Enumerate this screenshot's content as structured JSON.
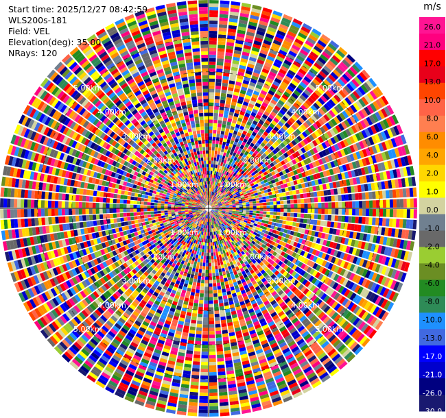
{
  "header": {
    "start_time": "Start time: 2025/12/27 08:42:59",
    "site": "WLS200s-181",
    "field": "Field: VEL",
    "elevation": "Elevation(deg): 35.00",
    "nrays": "NRays: 120"
  },
  "chart_data": {
    "type": "polar-ppi",
    "field": "VEL",
    "unit": "m/s",
    "nrays": 120,
    "elevation_deg": 35.0,
    "range_rings": [
      {
        "label": "1.00km",
        "km": 1
      },
      {
        "label": "2.00km",
        "km": 2
      },
      {
        "label": "3.00km",
        "km": 3
      },
      {
        "label": "4.00km",
        "km": 4
      },
      {
        "label": "5.00km",
        "km": 5
      }
    ],
    "max_range_km": 6.1,
    "colorbar": {
      "label": "m/s",
      "ticks": [
        "26.0",
        "21.0",
        "17.0",
        "13.0",
        "10.0",
        "8.0",
        "6.0",
        "4.0",
        "2.0",
        "1.0",
        "0.0",
        "-1.0",
        "-2.0",
        "-4.0",
        "-6.0",
        "-8.0",
        "-10.0",
        "-13.0",
        "-17.0",
        "-21.0",
        "-26.0",
        "-30.0"
      ],
      "colors": [
        "#ff1493",
        "#ff007f",
        "#ff0000",
        "#e8001a",
        "#ff4500",
        "#ff6347",
        "#ff7f50",
        "#ff8c00",
        "#ffa500",
        "#ffd700",
        "#ffff00",
        "#d3d3a0",
        "#708090",
        "#696969",
        "#9acd32",
        "#6b8e23",
        "#228b22",
        "#2e8b57",
        "#1e90ff",
        "#4169e1",
        "#0000ff",
        "#0000cd",
        "#000080",
        "#191970"
      ]
    }
  }
}
